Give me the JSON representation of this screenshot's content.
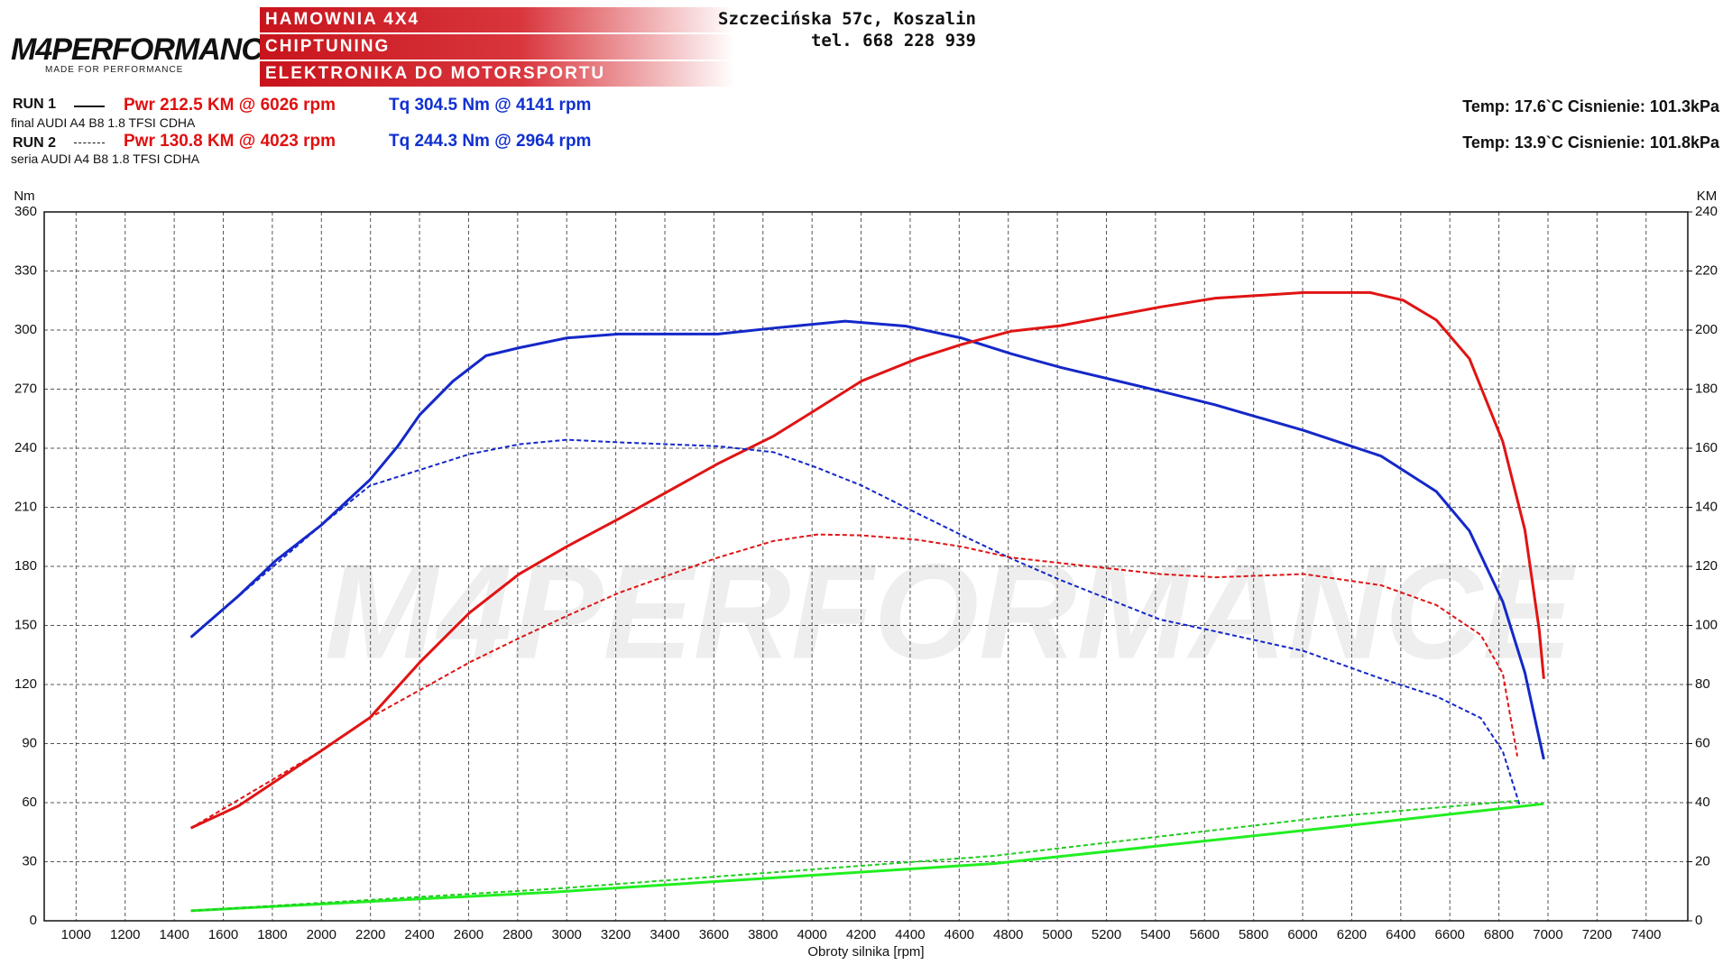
{
  "header": {
    "logo": "M4PERFORMANCE",
    "logo_sub": "MADE FOR PERFORMANCE",
    "banner": [
      "HAMOWNIA 4X4",
      "CHIPTUNING",
      "ELEKTRONIKA DO MOTORSPORTU"
    ],
    "address": "Szczecińska 57c, Koszalin",
    "phone": "tel. 668 228 939"
  },
  "runs": [
    {
      "label": "RUN 1",
      "desc": "final AUDI A4 B8 1.8 TFSI CDHA",
      "pwr": "Pwr  212.5 KM @ 6026 rpm",
      "tq": "Tq 304.5 Nm @ 4141 rpm",
      "conditions": "Temp: 17.6`C   Cisnienie: 101.3kPa"
    },
    {
      "label": "RUN 2",
      "desc": "seria AUDI A4 B8 1.8 TFSI CDHA",
      "pwr": "Pwr  130.8 KM @ 4023 rpm",
      "tq": "Tq 244.3 Nm @ 2964 rpm",
      "conditions": "Temp: 13.9`C   Cisnienie: 101.8kPa"
    }
  ],
  "chart_data": {
    "type": "line",
    "x_label": "Obroty silnika [rpm]",
    "y_label": "Nm",
    "y2_label": "KM",
    "xlim": [
      870,
      7570
    ],
    "xticks": [
      1000,
      1200,
      1400,
      1600,
      1800,
      2000,
      2200,
      2400,
      2600,
      2800,
      3000,
      3200,
      3400,
      3600,
      3800,
      4000,
      4200,
      4400,
      4600,
      4800,
      5000,
      5200,
      5400,
      5600,
      5800,
      6000,
      6200,
      6400,
      6600,
      6800,
      7000,
      7200,
      7400
    ],
    "ylim": [
      0,
      360
    ],
    "yticks": [
      0,
      30,
      60,
      90,
      120,
      150,
      180,
      210,
      240,
      270,
      300,
      330,
      360
    ],
    "y2lim": [
      0,
      240
    ],
    "y2ticks": [
      0,
      20,
      40,
      60,
      80,
      100,
      120,
      140,
      160,
      180,
      200,
      220,
      240
    ],
    "grid": true,
    "series": [
      {
        "color": "#1428c8",
        "dashed": false,
        "x": [
          1468,
          1662,
          1815,
          2000,
          2198,
          2311,
          2401,
          2536,
          2671,
          2806,
          3000,
          3212,
          3617,
          3843,
          4135,
          4383,
          4608,
          4811,
          5014,
          5419,
          5644,
          6005,
          6320,
          6545,
          6680,
          6816,
          6906,
          6983
        ],
        "values": [
          144,
          165,
          183,
          201,
          224,
          241,
          257,
          274,
          287,
          291,
          296,
          298,
          298,
          301,
          304.5,
          302,
          296,
          288,
          281,
          269,
          262,
          249,
          236,
          218,
          198,
          162,
          126,
          82
        ]
      },
      {
        "color": "#e01414",
        "dashed": false,
        "axis": "y2",
        "x": [
          1468,
          1662,
          2000,
          2198,
          2401,
          2604,
          2806,
          3000,
          3212,
          3617,
          3843,
          4023,
          4203,
          4428,
          4608,
          4811,
          5014,
          5419,
          5644,
          6005,
          6275,
          6410,
          6545,
          6680,
          6816,
          6906,
          6964,
          6983
        ],
        "values": [
          31.4,
          38.9,
          57.6,
          68.8,
          87.5,
          104.3,
          117.4,
          126.7,
          136.1,
          154.8,
          164.1,
          173.4,
          182.8,
          190.3,
          195.1,
          199.6,
          201.5,
          207.8,
          210.8,
          212.7,
          212.7,
          210.1,
          203.4,
          190.3,
          162.2,
          132.3,
          98.7,
          81.9
        ]
      },
      {
        "color": "#1428c8",
        "dashed": true,
        "x": [
          1468,
          2000,
          2198,
          2401,
          2604,
          2806,
          3000,
          3212,
          3617,
          3843,
          4023,
          4203,
          4428,
          4608,
          4811,
          5014,
          5419,
          5644,
          6005,
          6320,
          6545,
          6726,
          6816,
          6884
        ],
        "values": [
          144,
          201,
          221,
          229,
          237,
          242,
          244.3,
          243,
          241,
          238,
          230,
          221,
          207,
          196,
          184,
          173,
          153,
          147,
          137,
          123,
          114,
          103,
          86,
          59
        ]
      },
      {
        "color": "#e01414",
        "dashed": true,
        "axis": "y2",
        "x": [
          1468,
          2000,
          2198,
          2401,
          2604,
          2806,
          3000,
          3212,
          3617,
          3843,
          4023,
          4203,
          4428,
          4608,
          4811,
          5014,
          5419,
          5644,
          6005,
          6320,
          6545,
          6726,
          6816,
          6875
        ],
        "values": [
          31.4,
          57.6,
          68.8,
          78.1,
          87.5,
          95.7,
          103.2,
          111,
          123,
          128.6,
          130.8,
          130.5,
          129,
          126.7,
          123,
          121.1,
          117.4,
          116.3,
          117.4,
          113.6,
          106.9,
          96.8,
          83.7,
          55.7
        ]
      },
      {
        "color": "#22ee22",
        "dashed": false,
        "axis": "y2",
        "x": [
          1468,
          2942,
          4744,
          6095,
          6983
        ],
        "values": [
          3.4,
          9.7,
          19.4,
          31.4,
          39.6
        ]
      },
      {
        "color": "#22cc22",
        "dashed": true,
        "axis": "y2",
        "x": [
          1468,
          2942,
          4744,
          6095,
          6884
        ],
        "values": [
          3.4,
          10.8,
          22,
          35.1,
          40.7
        ]
      }
    ]
  }
}
